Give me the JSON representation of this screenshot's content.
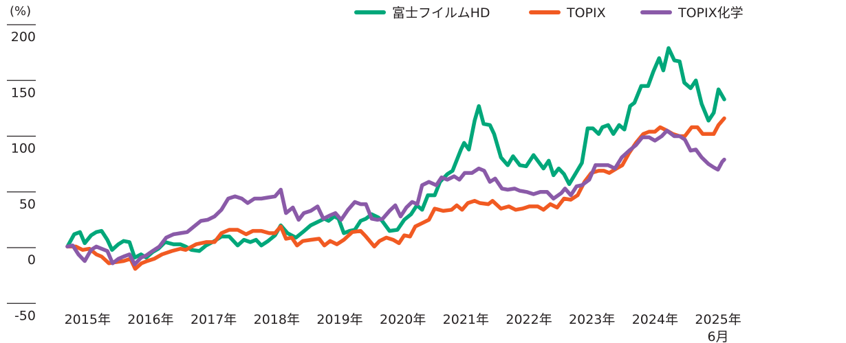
{
  "chart_data": {
    "type": "line",
    "title": "",
    "unit_label": "(%)",
    "xlabel": "",
    "ylabel": "(%)",
    "ylim": [
      -50,
      200
    ],
    "yticks": [
      200,
      150,
      100,
      50,
      0,
      -50
    ],
    "grid": false,
    "legend_position": "top-right",
    "x_domain_months": [
      0,
      125
    ],
    "x_note": "x = months since Jan 2015 (0) through Jun 2025 (125)",
    "xticks": [
      {
        "label": "2015年",
        "month": 2
      },
      {
        "label": "2016年",
        "month": 14
      },
      {
        "label": "2017年",
        "month": 26
      },
      {
        "label": "2018年",
        "month": 38
      },
      {
        "label": "2019年",
        "month": 50
      },
      {
        "label": "2020年",
        "month": 62
      },
      {
        "label": "2021年",
        "month": 74
      },
      {
        "label": "2022年",
        "month": 86
      },
      {
        "label": "2023年",
        "month": 98
      },
      {
        "label": "2024年",
        "month": 110
      },
      {
        "label": "2025年",
        "sublabel": "6月",
        "month": 122
      }
    ],
    "series": [
      {
        "name": "富士フイルムHD",
        "color": "#00a77a",
        "points": [
          [
            0,
            1
          ],
          [
            1.3,
            12
          ],
          [
            2.4,
            14
          ],
          [
            3.3,
            4
          ],
          [
            4.5,
            11
          ],
          [
            5.5,
            14
          ],
          [
            6.5,
            15
          ],
          [
            7.6,
            7
          ],
          [
            8.5,
            -2
          ],
          [
            9.7,
            3
          ],
          [
            10.7,
            6
          ],
          [
            11.8,
            5
          ],
          [
            12.8,
            -9
          ],
          [
            14,
            -6
          ],
          [
            15,
            -9
          ],
          [
            16.2,
            -4
          ],
          [
            17.3,
            -1
          ],
          [
            18.6,
            5
          ],
          [
            20.2,
            3
          ],
          [
            21.5,
            3
          ],
          [
            22.5,
            1
          ],
          [
            23.6,
            -2
          ],
          [
            25.1,
            -3
          ],
          [
            26.4,
            2
          ],
          [
            28,
            6
          ],
          [
            29.3,
            10
          ],
          [
            30.8,
            10
          ],
          [
            32.4,
            2
          ],
          [
            33.6,
            7
          ],
          [
            34.8,
            5
          ],
          [
            35.9,
            7
          ],
          [
            36.9,
            2
          ],
          [
            38.2,
            6
          ],
          [
            39.5,
            11
          ],
          [
            40.6,
            20
          ],
          [
            41.9,
            13
          ],
          [
            43.5,
            9
          ],
          [
            44.8,
            14
          ],
          [
            46.3,
            20
          ],
          [
            47.6,
            23
          ],
          [
            48.9,
            26
          ],
          [
            49.7,
            24
          ],
          [
            50.8,
            28
          ],
          [
            51.6,
            26
          ],
          [
            52.6,
            13
          ],
          [
            53.7,
            15
          ],
          [
            54.7,
            16
          ],
          [
            55.8,
            24
          ],
          [
            56.8,
            26
          ],
          [
            57.9,
            30
          ],
          [
            59.2,
            27
          ],
          [
            59.9,
            24
          ],
          [
            61.3,
            15
          ],
          [
            62.8,
            16
          ],
          [
            64.1,
            25
          ],
          [
            65.4,
            30
          ],
          [
            66.5,
            38
          ],
          [
            67.5,
            34
          ],
          [
            68.6,
            47
          ],
          [
            69.9,
            47
          ],
          [
            70.9,
            59
          ],
          [
            72.3,
            66
          ],
          [
            73.3,
            69
          ],
          [
            74.9,
            88
          ],
          [
            75.5,
            94
          ],
          [
            76.4,
            88
          ],
          [
            77.5,
            114
          ],
          [
            78.3,
            127
          ],
          [
            79.2,
            111
          ],
          [
            80.4,
            110
          ],
          [
            81.2,
            102
          ],
          [
            82.5,
            81
          ],
          [
            83.8,
            74
          ],
          [
            84.8,
            82
          ],
          [
            86.1,
            74
          ],
          [
            87.3,
            73
          ],
          [
            88.7,
            83
          ],
          [
            90.6,
            71
          ],
          [
            91.6,
            78
          ],
          [
            92.5,
            65
          ],
          [
            93.5,
            71
          ],
          [
            94.5,
            66
          ],
          [
            95.5,
            57
          ],
          [
            96.9,
            68
          ],
          [
            97.9,
            76
          ],
          [
            99,
            107
          ],
          [
            100,
            107
          ],
          [
            101.1,
            102
          ],
          [
            101.8,
            108
          ],
          [
            102.9,
            110
          ],
          [
            103.9,
            102
          ],
          [
            105,
            110
          ],
          [
            106,
            106
          ],
          [
            107.1,
            127
          ],
          [
            107.9,
            130
          ],
          [
            109.2,
            145
          ],
          [
            110.5,
            145
          ],
          [
            111.5,
            158
          ],
          [
            112.6,
            170
          ],
          [
            113.4,
            159
          ],
          [
            114.4,
            179
          ],
          [
            115.5,
            168
          ],
          [
            116.5,
            167
          ],
          [
            117.4,
            148
          ],
          [
            118.6,
            143
          ],
          [
            119.6,
            150
          ],
          [
            120.7,
            129
          ],
          [
            122,
            114
          ],
          [
            123,
            121
          ],
          [
            123.9,
            142
          ],
          [
            125,
            133
          ]
        ]
      },
      {
        "name": "TOPIX",
        "color": "#f15a22",
        "points": [
          [
            0,
            1
          ],
          [
            1.6,
            1
          ],
          [
            2.9,
            -2
          ],
          [
            4.2,
            -1
          ],
          [
            5.5,
            -6
          ],
          [
            6.5,
            -8
          ],
          [
            7.9,
            -14
          ],
          [
            9.2,
            -13
          ],
          [
            10.7,
            -12
          ],
          [
            12,
            -10
          ],
          [
            12.9,
            -19
          ],
          [
            14.1,
            -14
          ],
          [
            15.2,
            -12
          ],
          [
            16.5,
            -10
          ],
          [
            18,
            -6
          ],
          [
            19.9,
            -3
          ],
          [
            21.5,
            -1
          ],
          [
            22.5,
            -2
          ],
          [
            24.5,
            3
          ],
          [
            26.4,
            5
          ],
          [
            28,
            5
          ],
          [
            29.3,
            13
          ],
          [
            30.8,
            16
          ],
          [
            32.4,
            16
          ],
          [
            34,
            12
          ],
          [
            35.3,
            15
          ],
          [
            36.9,
            15
          ],
          [
            38.4,
            13
          ],
          [
            39.5,
            13
          ],
          [
            40.6,
            19
          ],
          [
            41.6,
            8
          ],
          [
            42.7,
            9
          ],
          [
            43.7,
            2
          ],
          [
            44.8,
            6
          ],
          [
            46.3,
            7
          ],
          [
            47.9,
            8
          ],
          [
            48.9,
            2
          ],
          [
            50,
            6
          ],
          [
            51.3,
            3
          ],
          [
            52.6,
            7
          ],
          [
            54.2,
            14
          ],
          [
            55.8,
            15
          ],
          [
            56.8,
            10
          ],
          [
            58.4,
            1
          ],
          [
            59.4,
            6
          ],
          [
            60.7,
            9
          ],
          [
            62,
            7
          ],
          [
            63.1,
            4
          ],
          [
            64.1,
            11
          ],
          [
            65.2,
            10
          ],
          [
            66.2,
            19
          ],
          [
            67.5,
            22
          ],
          [
            68.8,
            25
          ],
          [
            69.9,
            35
          ],
          [
            71.5,
            33
          ],
          [
            73.1,
            34
          ],
          [
            74.1,
            38
          ],
          [
            75.1,
            34
          ],
          [
            76.2,
            40
          ],
          [
            77.5,
            42
          ],
          [
            78.5,
            40
          ],
          [
            80.1,
            39
          ],
          [
            80.9,
            42
          ],
          [
            82.5,
            35
          ],
          [
            84,
            37
          ],
          [
            85.3,
            34
          ],
          [
            86.6,
            35
          ],
          [
            87.9,
            37
          ],
          [
            89.5,
            37
          ],
          [
            90.6,
            34
          ],
          [
            91.9,
            39
          ],
          [
            93.2,
            36
          ],
          [
            94.5,
            44
          ],
          [
            95.8,
            43
          ],
          [
            97.1,
            47
          ],
          [
            98.4,
            59
          ],
          [
            99.7,
            67
          ],
          [
            101.1,
            69
          ],
          [
            102.1,
            69
          ],
          [
            103.1,
            67
          ],
          [
            104.5,
            71
          ],
          [
            105.6,
            74
          ],
          [
            106.9,
            85
          ],
          [
            108.2,
            94
          ],
          [
            109.6,
            102
          ],
          [
            110.7,
            104
          ],
          [
            111.8,
            104
          ],
          [
            112.8,
            108
          ],
          [
            114.1,
            105
          ],
          [
            115.2,
            102
          ],
          [
            116.5,
            100
          ],
          [
            117.5,
            100
          ],
          [
            118.8,
            108
          ],
          [
            119.9,
            108
          ],
          [
            120.9,
            102
          ],
          [
            122,
            102
          ],
          [
            123,
            102
          ],
          [
            123.9,
            110
          ],
          [
            125,
            116
          ]
        ]
      },
      {
        "name": "TOPIX化学",
        "color": "#8a5aa8",
        "points": [
          [
            0,
            1
          ],
          [
            1,
            2
          ],
          [
            2.1,
            -6
          ],
          [
            3.3,
            -12
          ],
          [
            4.5,
            -2
          ],
          [
            5.5,
            1
          ],
          [
            6.5,
            -1
          ],
          [
            7.6,
            -3
          ],
          [
            8.6,
            -14
          ],
          [
            9.7,
            -10
          ],
          [
            10.7,
            -8
          ],
          [
            11.8,
            -6
          ],
          [
            12.8,
            -15
          ],
          [
            14,
            -9
          ],
          [
            15,
            -7
          ],
          [
            16.2,
            -3
          ],
          [
            17.5,
            1
          ],
          [
            18.8,
            9
          ],
          [
            20.2,
            12
          ],
          [
            21.5,
            13
          ],
          [
            22.8,
            14
          ],
          [
            24.1,
            19
          ],
          [
            25.4,
            24
          ],
          [
            26.7,
            25
          ],
          [
            28,
            28
          ],
          [
            29.3,
            34
          ],
          [
            30.6,
            44
          ],
          [
            31.9,
            46
          ],
          [
            33.2,
            44
          ],
          [
            34.3,
            40
          ],
          [
            35.6,
            44
          ],
          [
            36.9,
            44
          ],
          [
            38.2,
            45
          ],
          [
            39.5,
            46
          ],
          [
            40.6,
            52
          ],
          [
            41.6,
            31
          ],
          [
            42.9,
            36
          ],
          [
            44,
            25
          ],
          [
            45,
            31
          ],
          [
            46.3,
            33
          ],
          [
            47.6,
            37
          ],
          [
            48.7,
            26
          ],
          [
            50,
            29
          ],
          [
            51,
            31
          ],
          [
            52.1,
            25
          ],
          [
            53.4,
            34
          ],
          [
            54.7,
            41
          ],
          [
            55.8,
            39
          ],
          [
            56.8,
            39
          ],
          [
            57.9,
            26
          ],
          [
            59,
            25
          ],
          [
            60,
            26
          ],
          [
            61.3,
            33
          ],
          [
            62.4,
            38
          ],
          [
            63.4,
            28
          ],
          [
            64.5,
            36
          ],
          [
            65.6,
            41
          ],
          [
            66.6,
            39
          ],
          [
            67.5,
            56
          ],
          [
            68.8,
            59
          ],
          [
            70.2,
            56
          ],
          [
            71.2,
            63
          ],
          [
            72.3,
            61
          ],
          [
            73.6,
            64
          ],
          [
            74.6,
            61
          ],
          [
            75.6,
            67
          ],
          [
            77,
            67
          ],
          [
            78.3,
            71
          ],
          [
            79.3,
            69
          ],
          [
            80.4,
            59
          ],
          [
            81.4,
            62
          ],
          [
            82.7,
            53
          ],
          [
            83.8,
            52
          ],
          [
            85.1,
            53
          ],
          [
            86.1,
            51
          ],
          [
            87.4,
            50
          ],
          [
            88.7,
            48
          ],
          [
            90,
            50
          ],
          [
            91.3,
            50
          ],
          [
            92.5,
            44
          ],
          [
            94,
            49
          ],
          [
            94.7,
            53
          ],
          [
            95.8,
            47
          ],
          [
            96.9,
            55
          ],
          [
            97.9,
            56
          ],
          [
            99.3,
            61
          ],
          [
            100.5,
            74
          ],
          [
            101.8,
            74
          ],
          [
            102.9,
            74
          ],
          [
            104.2,
            71
          ],
          [
            105.5,
            81
          ],
          [
            106.9,
            87
          ],
          [
            108.2,
            92
          ],
          [
            109.4,
            99
          ],
          [
            110.7,
            99
          ],
          [
            111.8,
            96
          ],
          [
            113.1,
            100
          ],
          [
            114.1,
            105
          ],
          [
            115.5,
            100
          ],
          [
            116.5,
            100
          ],
          [
            117.5,
            97
          ],
          [
            118.6,
            87
          ],
          [
            119.6,
            88
          ],
          [
            120.7,
            81
          ],
          [
            122,
            75
          ],
          [
            123,
            72
          ],
          [
            123.8,
            70
          ],
          [
            124.6,
            77
          ],
          [
            125,
            79
          ]
        ]
      }
    ]
  }
}
